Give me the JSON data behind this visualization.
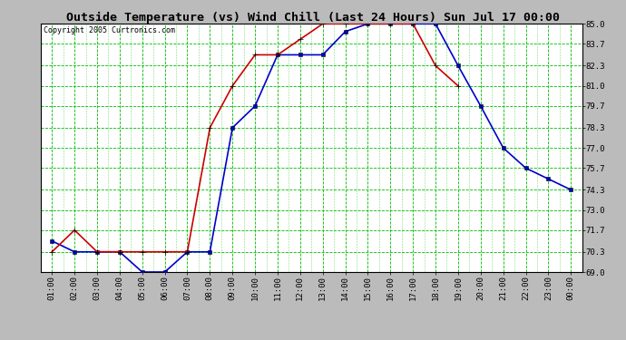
{
  "title": "Outside Temperature (vs) Wind Chill (Last 24 Hours) Sun Jul 17 00:00",
  "copyright": "Copyright 2005 Curtronics.com",
  "x_labels": [
    "01:00",
    "02:00",
    "03:00",
    "04:00",
    "05:00",
    "06:00",
    "07:00",
    "08:00",
    "09:00",
    "10:00",
    "11:00",
    "12:00",
    "13:00",
    "14:00",
    "15:00",
    "16:00",
    "17:00",
    "18:00",
    "19:00",
    "20:00",
    "21:00",
    "22:00",
    "23:00",
    "00:00"
  ],
  "ylim": [
    69.0,
    85.0
  ],
  "yticks": [
    69.0,
    70.3,
    71.7,
    73.0,
    74.3,
    75.7,
    77.0,
    78.3,
    79.7,
    81.0,
    82.3,
    83.7,
    85.0
  ],
  "blue_data": [
    71.0,
    70.3,
    70.3,
    70.3,
    69.0,
    69.0,
    70.3,
    70.3,
    78.3,
    79.7,
    83.0,
    83.0,
    83.0,
    84.5,
    85.0,
    85.0,
    85.0,
    85.0,
    82.3,
    79.7,
    77.0,
    75.7,
    75.0,
    74.3
  ],
  "red_data": [
    70.3,
    71.7,
    70.3,
    70.3,
    70.3,
    70.3,
    70.3,
    78.3,
    81.0,
    83.0,
    83.0,
    84.0,
    85.0,
    85.0,
    85.0,
    85.0,
    85.0,
    82.3,
    81.0,
    null,
    null,
    null,
    null,
    null
  ],
  "blue_color": "#0000cc",
  "red_color": "#cc0000",
  "grid_major_color": "#00bb00",
  "grid_minor_color": "#00bb00",
  "bg_color": "#ffffff",
  "title_bg": "#bbbbbb",
  "fig_bg": "#bbbbbb",
  "border_color": "#000000"
}
